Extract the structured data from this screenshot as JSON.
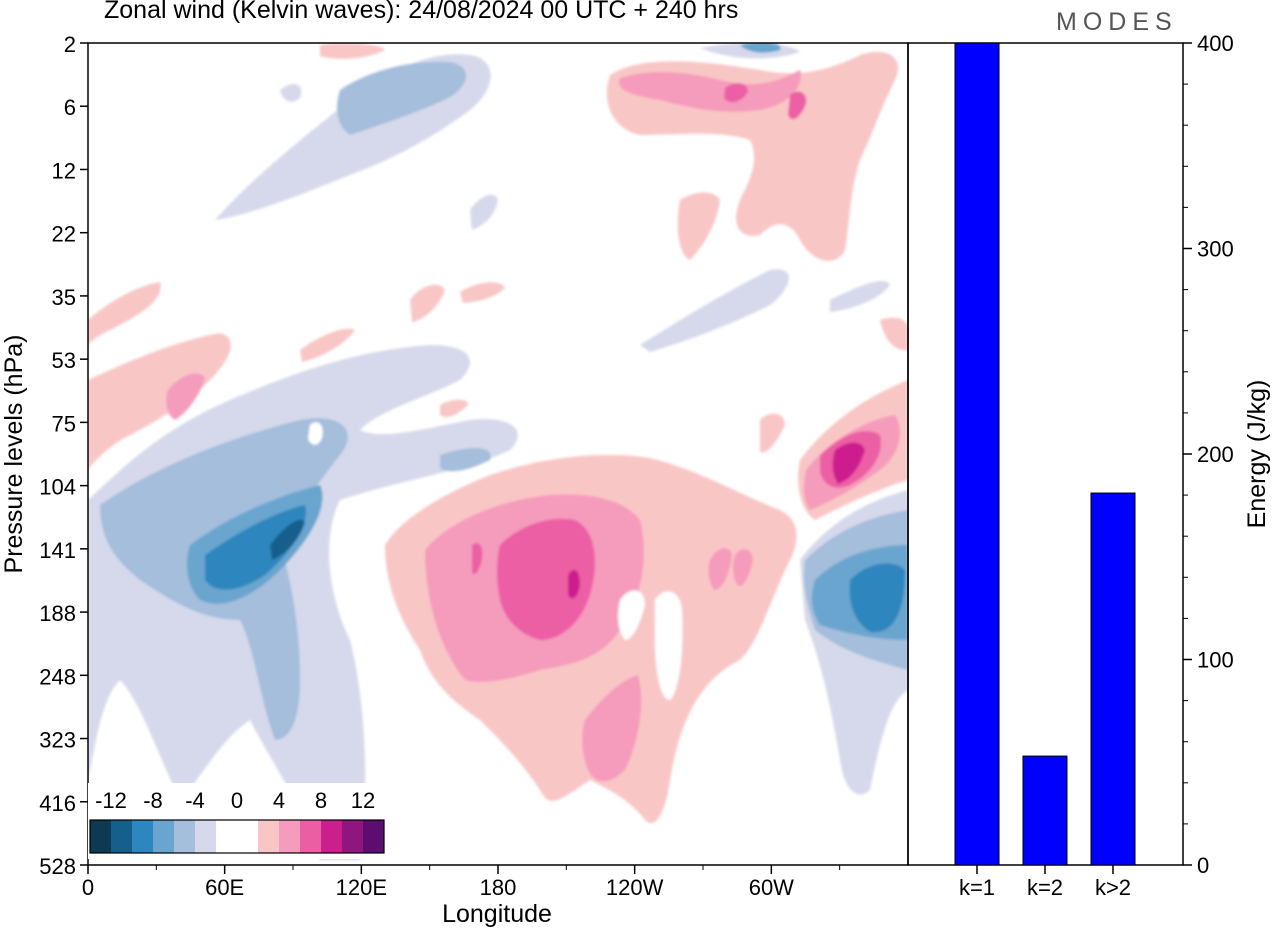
{
  "title": "Zonal wind (Kelvin waves):  24/08/2024  00 UTC  + 240 hrs",
  "logo": "MODES",
  "chart_data": [
    {
      "type": "heatmap",
      "xlabel": "Longitude",
      "ylabel": "Pressure levels (hPa)",
      "x_ticks": [
        "0",
        "60E",
        "120E",
        "180",
        "120W",
        "60W"
      ],
      "y_ticks": [
        "2",
        "6",
        "12",
        "22",
        "35",
        "53",
        "75",
        "104",
        "141",
        "188",
        "248",
        "323",
        "416",
        "528"
      ],
      "legend_labels": [
        "-12",
        "-8",
        "-4",
        "0",
        "4",
        "8",
        "12"
      ],
      "legend_colors": [
        "#0c3a52",
        "#155f8d",
        "#2e86be",
        "#6aa5cf",
        "#a4bedc",
        "#d6d9eb",
        "#ffffff",
        "#ffffff",
        "#f9c6c6",
        "#f59bbb",
        "#ec5ea4",
        "#cc1f8e",
        "#8f157f",
        "#5d0c70"
      ]
    },
    {
      "type": "bar",
      "categories": [
        "k=1",
        "k=2",
        "k>2"
      ],
      "values": [
        400,
        53,
        181
      ],
      "ylabel": "Energy (J/kg)",
      "y_ticks": [
        "0",
        "100",
        "200",
        "300",
        "400"
      ],
      "ylim": [
        0,
        400
      ],
      "bar_color": "#0000ff"
    }
  ]
}
